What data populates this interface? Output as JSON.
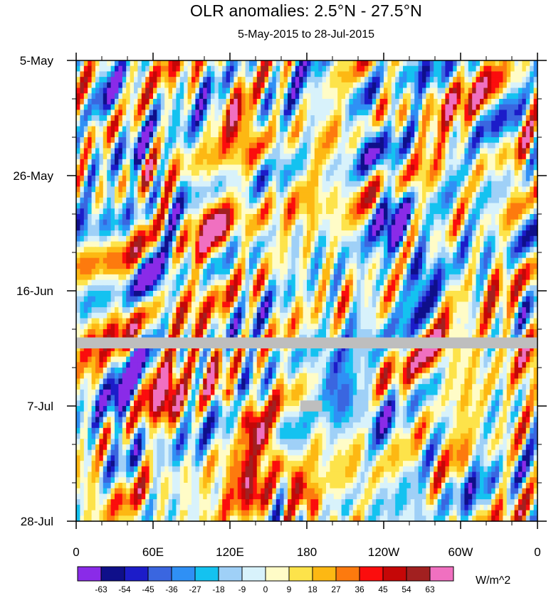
{
  "chart_data": {
    "type": "heatmap",
    "title": "OLR anomalies: 2.5°N - 27.5°N",
    "subtitle": "5-May-2015 to 28-Jul-2015",
    "x_ticks": [
      "0",
      "60E",
      "120E",
      "180",
      "120W",
      "60W",
      "0"
    ],
    "y_ticks": [
      "5-May",
      "26-May",
      "16-Jun",
      "7-Jul",
      "28-Jul"
    ],
    "xlim": [
      0,
      360
    ],
    "ylim_days": [
      0,
      84
    ],
    "colorbar": {
      "levels": [
        -63,
        -54,
        -45,
        -36,
        -27,
        -18,
        -9,
        0,
        9,
        18,
        27,
        36,
        45,
        54,
        63
      ],
      "colors": [
        "#8a2be8",
        "#0f0f8a",
        "#1c1cc9",
        "#3a66e0",
        "#2f90f5",
        "#14c2f0",
        "#9fd0f7",
        "#d8f2fb",
        "#fffcc7",
        "#fde34a",
        "#fdb813",
        "#fd7a0e",
        "#fb0d0d",
        "#c50707",
        "#a22020",
        "#f070c0"
      ],
      "units": "W/m^2"
    },
    "missing_bands": [
      {
        "day_start": 50.5,
        "day_end": 52.5,
        "lon_start": 0,
        "lon_end": 360,
        "color": "#bebebe"
      },
      {
        "day_start": 62.0,
        "day_end": 64.0,
        "lon_start": 175,
        "lon_end": 192,
        "color": "#bebebe"
      }
    ],
    "features": [
      {
        "lon": 125,
        "day": 11,
        "value": 45
      },
      {
        "lon": 105,
        "day": 29,
        "value": 36
      },
      {
        "lon": 70,
        "day": 60,
        "value": 50
      },
      {
        "lon": 105,
        "day": 55,
        "value": 40
      },
      {
        "lon": 140,
        "day": 78,
        "value": 45
      },
      {
        "lon": 230,
        "day": 14,
        "value": -45
      },
      {
        "lon": 250,
        "day": 30,
        "value": -50
      },
      {
        "lon": 205,
        "day": 60,
        "value": -45
      },
      {
        "lon": 235,
        "day": 65,
        "value": -40
      },
      {
        "lon": 55,
        "day": 38,
        "value": -30
      },
      {
        "lon": 30,
        "day": 5,
        "value": -35
      },
      {
        "lon": 270,
        "day": 40,
        "value": -30
      },
      {
        "lon": 290,
        "day": 55,
        "value": 27
      },
      {
        "lon": 340,
        "day": 50,
        "value": 27
      },
      {
        "lon": 15,
        "day": 78,
        "value": 22
      },
      {
        "lon": 40,
        "day": 65,
        "value": -30
      }
    ]
  }
}
